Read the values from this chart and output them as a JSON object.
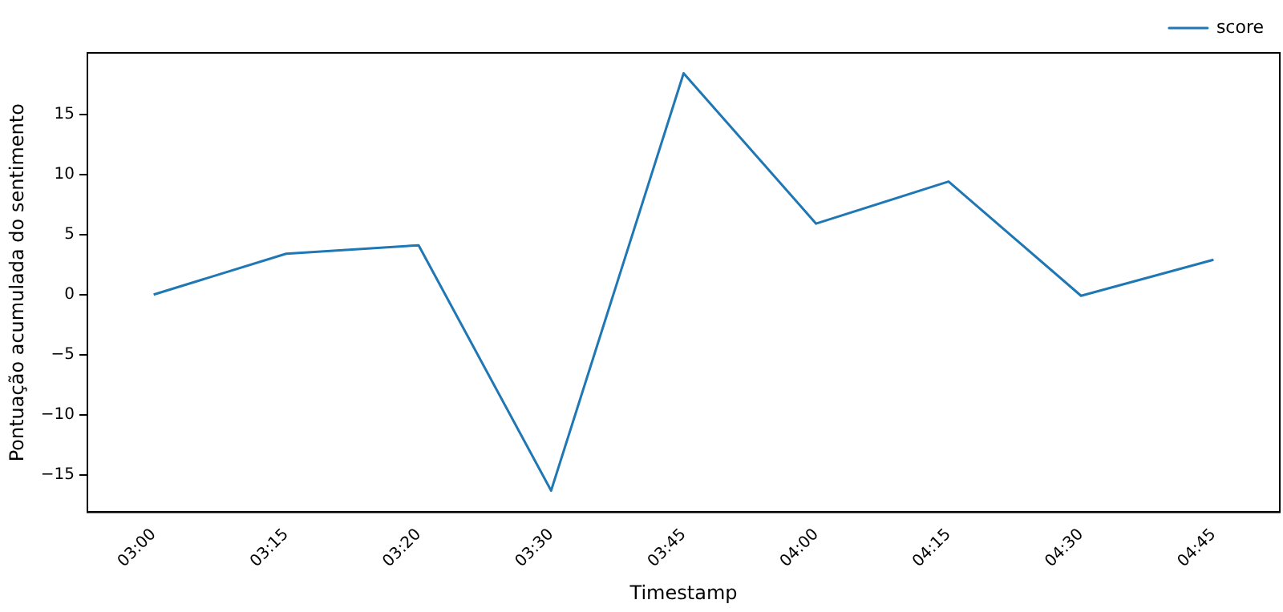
{
  "chart_data": {
    "type": "line",
    "xlabel": "Timestamp",
    "ylabel": "Pontuação acumulada do sentimento",
    "categories": [
      "03:00",
      "03:15",
      "03:20",
      "03:30",
      "03:45",
      "04:00",
      "04:15",
      "04:30",
      "04:45"
    ],
    "series": [
      {
        "name": "score",
        "color": "#1f77b4",
        "values": [
          0,
          3.4,
          4.1,
          -16.3,
          18.4,
          5.9,
          9.4,
          -0.1,
          2.9
        ]
      }
    ],
    "ylim": [
      -18.1,
      20.1
    ],
    "yticks": [
      -15,
      -10,
      -5,
      0,
      5,
      10,
      15
    ],
    "grid": false,
    "legend": "top right",
    "marker": "none",
    "line_style": "solid"
  }
}
